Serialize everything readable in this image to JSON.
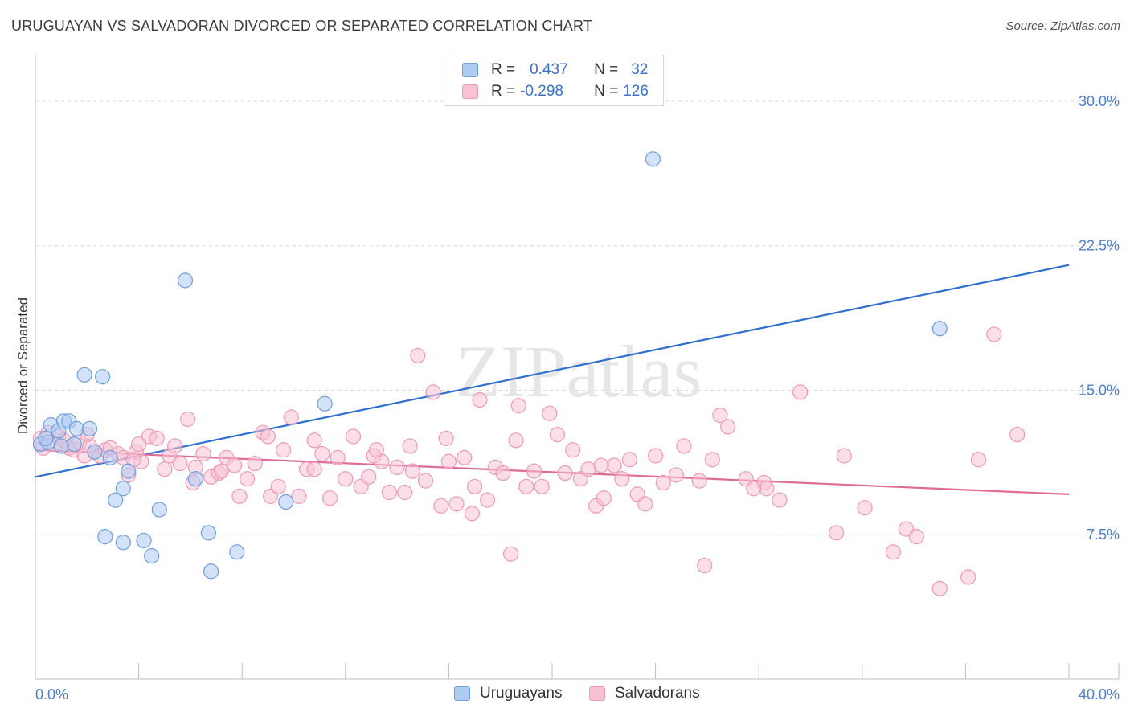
{
  "title": "URUGUAYAN VS SALVADORAN DIVORCED OR SEPARATED CORRELATION CHART",
  "source": "Source: ZipAtlas.com",
  "watermark": "ZIPatlas",
  "legend": {
    "rows": [
      {
        "r_label": "R =",
        "r_value": "0.437",
        "n_label": "N =",
        "n_value": "32"
      },
      {
        "r_label": "R =",
        "r_value": "-0.298",
        "n_label": "N =",
        "n_value": "126"
      }
    ]
  },
  "bottom_legend": {
    "uruguayans": "Uruguayans",
    "salvadorans": "Salvadorans"
  },
  "colors": {
    "blue_fill": "#aecbf2",
    "blue_stroke": "#6e9ede",
    "blue_line": "#2f6fcf",
    "pink_fill": "#f7c3d4",
    "pink_stroke": "#ee99b8",
    "pink_line": "#e06b96",
    "tick_text": "#4a7fd0",
    "grid": "#d9d9d9"
  },
  "chart_data": {
    "type": "scatter",
    "title": "URUGUAYAN VS SALVADORAN DIVORCED OR SEPARATED CORRELATION CHART",
    "xlabel": "",
    "ylabel": "Divorced or Separated",
    "xlim": [
      0,
      40
    ],
    "ylim": [
      0,
      32
    ],
    "x_tick_labels": [
      "0.0%",
      "40.0%"
    ],
    "y_ticks": [
      7.5,
      15.0,
      22.5,
      30.0
    ],
    "y_tick_labels": [
      "7.5%",
      "15.0%",
      "22.5%",
      "30.0%"
    ],
    "grid": true,
    "legend_position": "top-center",
    "series": [
      {
        "name": "Uruguayans",
        "color": "blue",
        "points": [
          [
            0.2,
            12.2
          ],
          [
            0.5,
            12.3
          ],
          [
            0.6,
            13.2
          ],
          [
            0.9,
            12.9
          ],
          [
            1.1,
            13.4
          ],
          [
            1.3,
            13.4
          ],
          [
            1.5,
            12.2
          ],
          [
            1.6,
            13.0
          ],
          [
            1.9,
            15.8
          ],
          [
            2.1,
            13.0
          ],
          [
            2.3,
            11.8
          ],
          [
            2.6,
            15.7
          ],
          [
            2.9,
            11.5
          ],
          [
            3.1,
            9.3
          ],
          [
            3.4,
            9.9
          ],
          [
            3.6,
            10.8
          ],
          [
            2.7,
            7.4
          ],
          [
            3.4,
            7.1
          ],
          [
            4.2,
            7.2
          ],
          [
            4.5,
            6.4
          ],
          [
            4.8,
            8.8
          ],
          [
            5.8,
            20.7
          ],
          [
            6.2,
            10.4
          ],
          [
            6.7,
            7.6
          ],
          [
            6.8,
            5.6
          ],
          [
            7.8,
            6.6
          ],
          [
            9.7,
            9.2
          ],
          [
            11.2,
            14.3
          ],
          [
            23.9,
            27.0
          ],
          [
            35.0,
            18.2
          ],
          [
            0.4,
            12.5
          ],
          [
            1.0,
            12.1
          ]
        ],
        "trend": {
          "x": [
            0,
            40
          ],
          "y": [
            10.5,
            21.5
          ]
        }
      },
      {
        "name": "Salvadorans",
        "color": "pink",
        "points": [
          [
            0.2,
            12.5
          ],
          [
            0.3,
            12.0
          ],
          [
            0.5,
            12.8
          ],
          [
            0.7,
            12.2
          ],
          [
            0.9,
            12.6
          ],
          [
            1.1,
            12.4
          ],
          [
            1.3,
            12.0
          ],
          [
            1.5,
            11.9
          ],
          [
            1.7,
            12.3
          ],
          [
            1.9,
            11.6
          ],
          [
            2.1,
            12.1
          ],
          [
            2.3,
            11.8
          ],
          [
            2.5,
            11.6
          ],
          [
            2.7,
            11.9
          ],
          [
            2.9,
            12.0
          ],
          [
            3.2,
            11.7
          ],
          [
            3.4,
            11.5
          ],
          [
            3.6,
            10.6
          ],
          [
            3.9,
            11.8
          ],
          [
            4.1,
            11.3
          ],
          [
            4.4,
            12.6
          ],
          [
            4.7,
            12.5
          ],
          [
            5.0,
            10.9
          ],
          [
            5.2,
            11.6
          ],
          [
            5.4,
            12.1
          ],
          [
            5.6,
            11.2
          ],
          [
            5.9,
            13.5
          ],
          [
            6.2,
            11.0
          ],
          [
            6.5,
            11.7
          ],
          [
            6.8,
            10.5
          ],
          [
            7.1,
            10.7
          ],
          [
            7.4,
            11.5
          ],
          [
            7.7,
            11.1
          ],
          [
            7.9,
            9.5
          ],
          [
            8.2,
            10.4
          ],
          [
            8.5,
            11.2
          ],
          [
            8.8,
            12.8
          ],
          [
            9.1,
            9.5
          ],
          [
            9.4,
            10.0
          ],
          [
            9.6,
            11.9
          ],
          [
            9.9,
            13.6
          ],
          [
            10.2,
            9.5
          ],
          [
            10.5,
            10.9
          ],
          [
            10.8,
            12.4
          ],
          [
            11.1,
            11.7
          ],
          [
            11.4,
            9.4
          ],
          [
            11.7,
            11.5
          ],
          [
            12.0,
            10.4
          ],
          [
            12.3,
            12.6
          ],
          [
            12.6,
            10.0
          ],
          [
            12.9,
            10.5
          ],
          [
            13.1,
            11.6
          ],
          [
            13.4,
            11.3
          ],
          [
            13.7,
            9.7
          ],
          [
            14.0,
            11.0
          ],
          [
            14.3,
            9.7
          ],
          [
            14.6,
            10.8
          ],
          [
            14.8,
            16.8
          ],
          [
            15.1,
            10.3
          ],
          [
            15.4,
            14.9
          ],
          [
            15.7,
            9.0
          ],
          [
            16.0,
            11.3
          ],
          [
            16.3,
            9.1
          ],
          [
            16.6,
            11.5
          ],
          [
            16.9,
            8.6
          ],
          [
            17.2,
            14.5
          ],
          [
            17.5,
            9.3
          ],
          [
            17.8,
            11.0
          ],
          [
            18.1,
            10.7
          ],
          [
            18.4,
            6.5
          ],
          [
            18.7,
            14.2
          ],
          [
            19.0,
            10.0
          ],
          [
            19.3,
            10.8
          ],
          [
            19.6,
            10.0
          ],
          [
            19.9,
            13.8
          ],
          [
            20.2,
            12.7
          ],
          [
            20.5,
            10.7
          ],
          [
            20.8,
            11.9
          ],
          [
            21.1,
            10.4
          ],
          [
            21.4,
            10.9
          ],
          [
            21.7,
            9.0
          ],
          [
            22.0,
            9.4
          ],
          [
            22.4,
            11.1
          ],
          [
            22.7,
            10.4
          ],
          [
            23.0,
            11.4
          ],
          [
            23.3,
            9.6
          ],
          [
            23.6,
            9.1
          ],
          [
            24.0,
            11.6
          ],
          [
            24.3,
            10.2
          ],
          [
            25.1,
            12.1
          ],
          [
            25.7,
            10.3
          ],
          [
            25.9,
            5.9
          ],
          [
            26.2,
            11.4
          ],
          [
            26.5,
            13.7
          ],
          [
            26.8,
            13.1
          ],
          [
            27.5,
            10.4
          ],
          [
            28.2,
            10.2
          ],
          [
            28.8,
            9.3
          ],
          [
            29.6,
            14.9
          ],
          [
            31.0,
            7.6
          ],
          [
            31.3,
            11.6
          ],
          [
            32.1,
            8.9
          ],
          [
            33.2,
            6.6
          ],
          [
            33.7,
            7.8
          ],
          [
            34.1,
            7.4
          ],
          [
            35.0,
            4.7
          ],
          [
            36.1,
            5.3
          ],
          [
            36.5,
            11.4
          ],
          [
            37.1,
            17.9
          ],
          [
            38.0,
            12.7
          ],
          [
            28.3,
            9.9
          ],
          [
            14.5,
            12.1
          ],
          [
            18.6,
            12.4
          ],
          [
            6.1,
            10.2
          ],
          [
            2.0,
            12.7
          ],
          [
            3.8,
            11.4
          ],
          [
            7.2,
            10.8
          ],
          [
            10.8,
            10.9
          ],
          [
            17.0,
            10.0
          ],
          [
            24.8,
            10.6
          ],
          [
            27.8,
            9.9
          ],
          [
            15.9,
            12.5
          ],
          [
            4.0,
            12.2
          ],
          [
            9.0,
            12.6
          ],
          [
            13.2,
            11.9
          ],
          [
            21.9,
            11.1
          ]
        ],
        "trend": {
          "x": [
            0,
            40
          ],
          "y": [
            11.9,
            9.6
          ]
        }
      }
    ]
  }
}
